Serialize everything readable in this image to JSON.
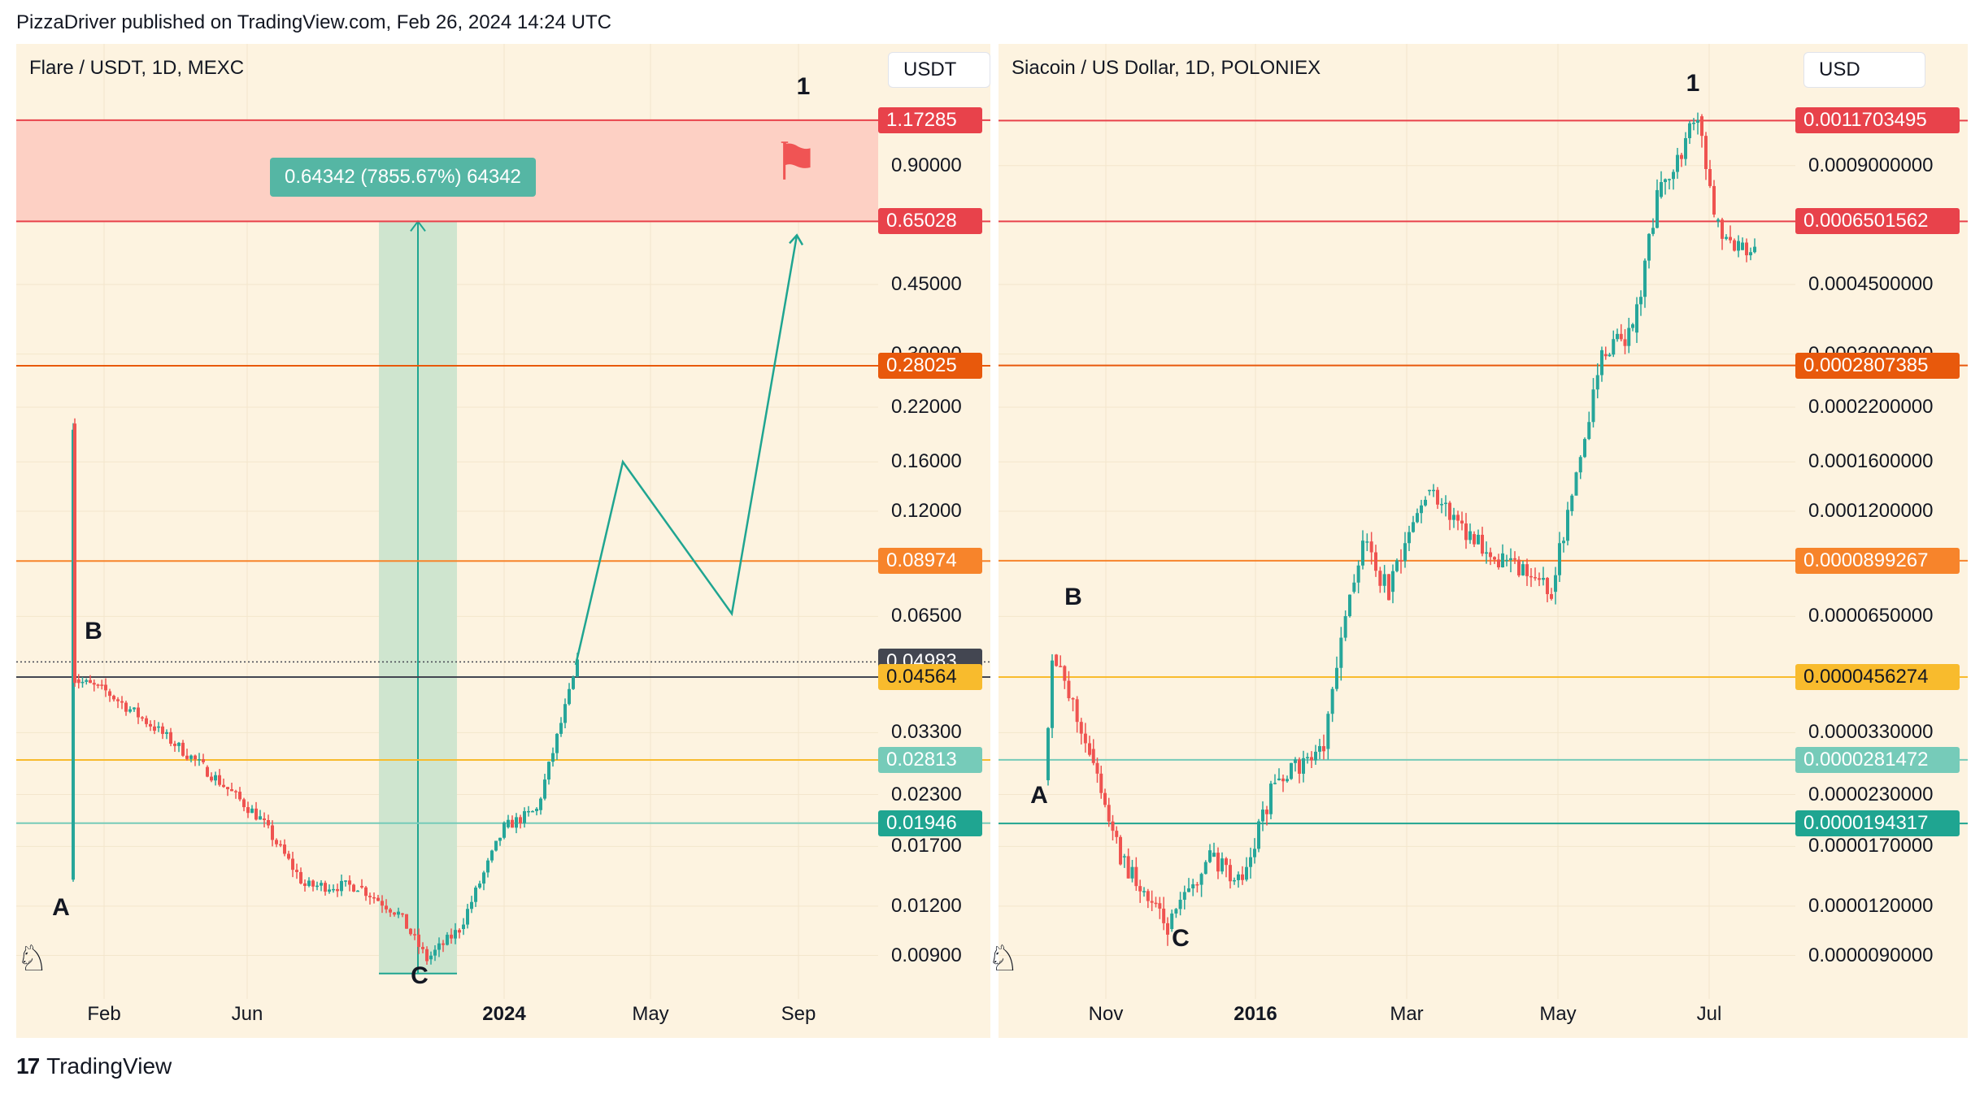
{
  "header": {
    "text": "PizzaDriver published on TradingView.com, Feb 26, 2024 14:24 UTC"
  },
  "footer": {
    "logo_mark": "17",
    "brand": "TradingView"
  },
  "colors": {
    "bg": "#fdf3e0",
    "red_zone": "#fdd0c4",
    "green_zone": "#cfe5cf",
    "teal": "#1fa591",
    "up": "#26a69a",
    "down": "#ef5350"
  },
  "left": {
    "symbol": "Flare / USDT, 1D, MEXC",
    "currency": "USDT",
    "measure_label": "0.64342 (7855.67%) 64342",
    "flag_icon": "checkered-flag-icon",
    "price_labels": [
      {
        "text": "1.17285",
        "color": "#e8424b"
      },
      {
        "text": "0.65028",
        "color": "#e8424b"
      },
      {
        "text": "0.28025",
        "color": "#e8590c"
      },
      {
        "text": "0.08974",
        "color": "#f7842b"
      },
      {
        "text": "0.04983",
        "color": "#434651"
      },
      {
        "text": "0.04564",
        "color": "#f8bb2d"
      },
      {
        "text": "0.02813",
        "color": "#76cbb9"
      },
      {
        "text": "0.01946",
        "color": "#1fa591"
      }
    ],
    "y_ticks": [
      "0.90000",
      "0.45000",
      "0.30000",
      "0.22000",
      "0.16000",
      "0.12000",
      "0.06500",
      "0.03300",
      "0.02300",
      "0.01700",
      "0.01200",
      "0.00900"
    ],
    "x_ticks": [
      {
        "text": "Feb",
        "bold": false
      },
      {
        "text": "Jun",
        "bold": false
      },
      {
        "text": "2024",
        "bold": true
      },
      {
        "text": "May",
        "bold": false
      },
      {
        "text": "Sep",
        "bold": false
      }
    ],
    "waves": [
      "A",
      "B",
      "C",
      "1"
    ]
  },
  "right": {
    "symbol": "Siacoin / US Dollar, 1D, POLONIEX",
    "currency": "USD",
    "price_labels": [
      {
        "text": "0.0011703495",
        "color": "#e8424b"
      },
      {
        "text": "0.0006501562",
        "color": "#e8424b"
      },
      {
        "text": "0.0002807385",
        "color": "#e8590c"
      },
      {
        "text": "0.0000899267",
        "color": "#f7842b"
      },
      {
        "text": "0.0000456274",
        "color": "#f8bb2d"
      },
      {
        "text": "0.0000281472",
        "color": "#76cbb9"
      },
      {
        "text": "0.0000194317",
        "color": "#1fa591"
      }
    ],
    "y_ticks": [
      "0.0009000000",
      "0.0004500000",
      "0.0003000000",
      "0.0002200000",
      "0.0001600000",
      "0.0001200000",
      "0.0000650000",
      "0.0000330000",
      "0.0000230000",
      "0.0000170000",
      "0.0000120000",
      "0.0000090000"
    ],
    "x_ticks": [
      {
        "text": "Nov",
        "bold": false
      },
      {
        "text": "2016",
        "bold": true
      },
      {
        "text": "Mar",
        "bold": false
      },
      {
        "text": "May",
        "bold": false
      },
      {
        "text": "Jul",
        "bold": false
      }
    ],
    "waves": [
      "A",
      "B",
      "C",
      "1"
    ]
  },
  "chart_data": [
    {
      "type": "candlestick",
      "title": "Flare / USDT, 1D, MEXC",
      "y_scale": "log",
      "ylim": [
        0.0075,
        1.5
      ],
      "x_ticks": [
        "Feb",
        "Jun",
        "2024",
        "May",
        "Sep"
      ],
      "current_price": 0.04983,
      "horizontal_levels": [
        1.17285,
        0.65028,
        0.28025,
        0.08974,
        0.04564,
        0.02813,
        0.01946
      ],
      "target_zone": [
        0.65028,
        1.17285
      ],
      "measure": {
        "from": 0.0081,
        "to": 0.65028,
        "label": "0.64342 (7855.67%) 64342"
      },
      "price_path": [
        {
          "x": "Jan 2023",
          "y": 0.014
        },
        {
          "x": "Jan 2023",
          "y": 0.2
        },
        {
          "x": "Jan 2023",
          "y": 0.045
        },
        {
          "x": "Feb 2023",
          "y": 0.042
        },
        {
          "x": "Apr 2023",
          "y": 0.034
        },
        {
          "x": "May 2023",
          "y": 0.027
        },
        {
          "x": "Jun 2023",
          "y": 0.02
        },
        {
          "x": "Jul 2023",
          "y": 0.0135
        },
        {
          "x": "Aug 2023",
          "y": 0.0135
        },
        {
          "x": "Sep 2023",
          "y": 0.0115
        },
        {
          "x": "Oct 2023",
          "y": 0.0088
        },
        {
          "x": "Nov 2023",
          "y": 0.0105
        },
        {
          "x": "Dec 2023",
          "y": 0.019
        },
        {
          "x": "Jan 2024",
          "y": 0.021
        },
        {
          "x": "Feb 2024",
          "y": 0.049
        }
      ],
      "projection": [
        {
          "x": "Feb 2024",
          "y": 0.049
        },
        {
          "x": "Apr 2024",
          "y": 0.16
        },
        {
          "x": "Jul 2024",
          "y": 0.066
        },
        {
          "x": "Sep 2024",
          "y": 0.6
        }
      ],
      "wave_labels": [
        "A",
        "B",
        "C",
        "1"
      ]
    },
    {
      "type": "candlestick",
      "title": "Siacoin / US Dollar, 1D, POLONIEX",
      "y_scale": "log",
      "ylim": [
        7.5e-06,
        0.0015
      ],
      "x_ticks": [
        "Nov",
        "2016",
        "Mar",
        "May",
        "Jul"
      ],
      "horizontal_levels": [
        0.0011703495,
        0.0006501562,
        0.0002807385,
        8.99267e-05,
        4.56274e-05,
        2.81472e-05,
        1.94317e-05
      ],
      "price_path": [
        {
          "x": "Oct 2015",
          "y": 2.5e-05
        },
        {
          "x": "Oct 2015",
          "y": 5.2e-05
        },
        {
          "x": "Nov 2015",
          "y": 3e-05
        },
        {
          "x": "Nov 2015",
          "y": 1.6e-05
        },
        {
          "x": "Dec 2015",
          "y": 1.05e-05
        },
        {
          "x": "Dec 2015",
          "y": 1.6e-05
        },
        {
          "x": "Jan 2016",
          "y": 1.4e-05
        },
        {
          "x": "Jan 2016",
          "y": 2.5e-05
        },
        {
          "x": "Feb 2016",
          "y": 3e-05
        },
        {
          "x": "Feb 2016",
          "y": 7.5e-05
        },
        {
          "x": "Feb 2016",
          "y": 0.0001
        },
        {
          "x": "Mar 2016",
          "y": 7.5e-05
        },
        {
          "x": "Mar 2016",
          "y": 0.000135
        },
        {
          "x": "Apr 2016",
          "y": 0.000105
        },
        {
          "x": "Apr 2016",
          "y": 9e-05
        },
        {
          "x": "May 2016",
          "y": 7.5e-05
        },
        {
          "x": "May 2016",
          "y": 0.00012
        },
        {
          "x": "May 2016",
          "y": 0.0003
        },
        {
          "x": "Jun 2016",
          "y": 0.00034
        },
        {
          "x": "Jun 2016",
          "y": 0.00075
        },
        {
          "x": "Jun 2016",
          "y": 0.0012
        },
        {
          "x": "Jul 2016",
          "y": 0.00065
        },
        {
          "x": "Jul 2016",
          "y": 0.00055
        },
        {
          "x": "Aug 2016",
          "y": 0.00055
        }
      ],
      "wave_labels": [
        "A",
        "B",
        "C",
        "1"
      ]
    }
  ]
}
